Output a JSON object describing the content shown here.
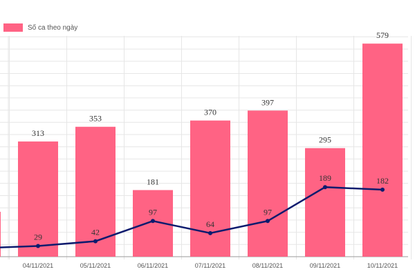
{
  "chart_data": {
    "type": "bar-line",
    "categories": [
      null,
      "04/11/2021",
      "05/11/2021",
      "06/11/2021",
      "07/11/2021",
      "08/11/2021",
      "09/11/2021",
      "10/11/2021"
    ],
    "series": [
      {
        "name": "Số ca theo ngày",
        "type": "bar",
        "color": "#ff6384",
        "values": [
          122,
          313,
          353,
          181,
          370,
          397,
          295,
          579
        ]
      },
      {
        "type": "line",
        "color": "#0d1b6e",
        "values": [
          23,
          29,
          42,
          97,
          64,
          97,
          189,
          182
        ]
      }
    ],
    "ylim": [
      0,
      600
    ],
    "grid": true
  }
}
